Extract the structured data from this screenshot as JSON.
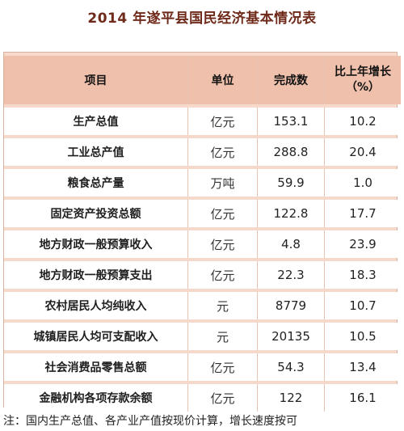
{
  "title": "2014 年遂平县国民经济基本情况表",
  "table": {
    "headers": {
      "item": "项目",
      "unit": "单位",
      "value": "完成数",
      "growth_line1": "比上年增长",
      "growth_line2": "（%）"
    },
    "rows": [
      {
        "item": "生产总值",
        "unit": "亿元",
        "value": "153.1",
        "growth": "10.2"
      },
      {
        "item": "工业总产值",
        "unit": "亿元",
        "value": "288.8",
        "growth": "20.4"
      },
      {
        "item": "粮食总产量",
        "unit": "万吨",
        "value": "59.9",
        "growth": "1.0"
      },
      {
        "item": "固定资产投资总额",
        "unit": "亿元",
        "value": "122.8",
        "growth": "17.7"
      },
      {
        "item": "地方财政一般预算收入",
        "unit": "亿元",
        "value": "4.8",
        "growth": "23.9"
      },
      {
        "item": "地方财政一般预算支出",
        "unit": "亿元",
        "value": "22.3",
        "growth": "18.3"
      },
      {
        "item": "农村居民人均纯收入",
        "unit": "元",
        "value": "8779",
        "growth": "10.7"
      },
      {
        "item": "城镇居民人均可支配收入",
        "unit": "元",
        "value": "20135",
        "growth": "10.5"
      },
      {
        "item": "社会消费品零售总额",
        "unit": "亿元",
        "value": "54.3",
        "growth": "13.4"
      },
      {
        "item": "金融机构各项存款余额",
        "unit": "亿元",
        "value": "122",
        "growth": "16.1"
      }
    ]
  },
  "footnote": "注：国内生产总值、各产业产值按现价计算，增长速度按可"
}
